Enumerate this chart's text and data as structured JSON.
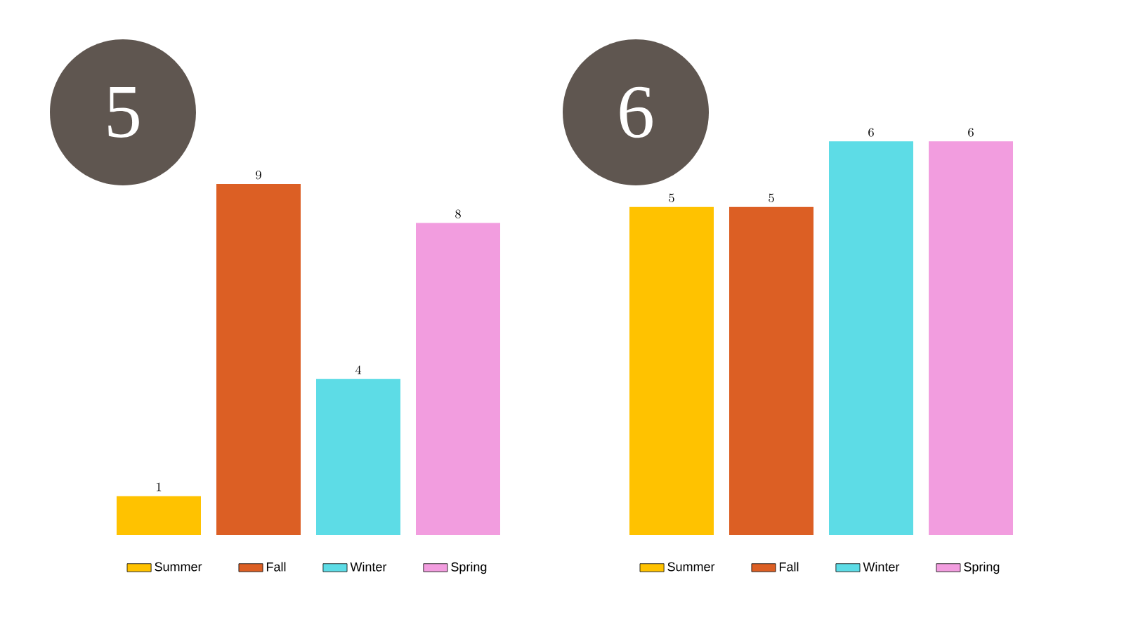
{
  "chart_data": [
    {
      "type": "bar",
      "title": "5",
      "categories": [
        null
      ],
      "series": [
        {
          "name": "Summer",
          "color": "#ffc200",
          "values": [
            1
          ]
        },
        {
          "name": "Fall",
          "color": "#dc5f24",
          "values": [
            9
          ]
        },
        {
          "name": "Winter",
          "color": "#5ddce6",
          "values": [
            4
          ]
        },
        {
          "name": "Spring",
          "color": "#f29ddf",
          "values": [
            8
          ]
        }
      ],
      "data_labels": true,
      "legend": "bottom"
    },
    {
      "type": "bar",
      "title": "6",
      "categories": [
        null
      ],
      "series": [
        {
          "name": "Summer",
          "color": "#ffc200",
          "values": [
            5
          ]
        },
        {
          "name": "Fall",
          "color": "#dc5f24",
          "values": [
            5
          ]
        },
        {
          "name": "Winter",
          "color": "#5ddce6",
          "values": [
            6
          ]
        },
        {
          "name": "Spring",
          "color": "#f29ddf",
          "values": [
            6
          ]
        }
      ],
      "data_labels": true,
      "legend": "bottom"
    }
  ]
}
